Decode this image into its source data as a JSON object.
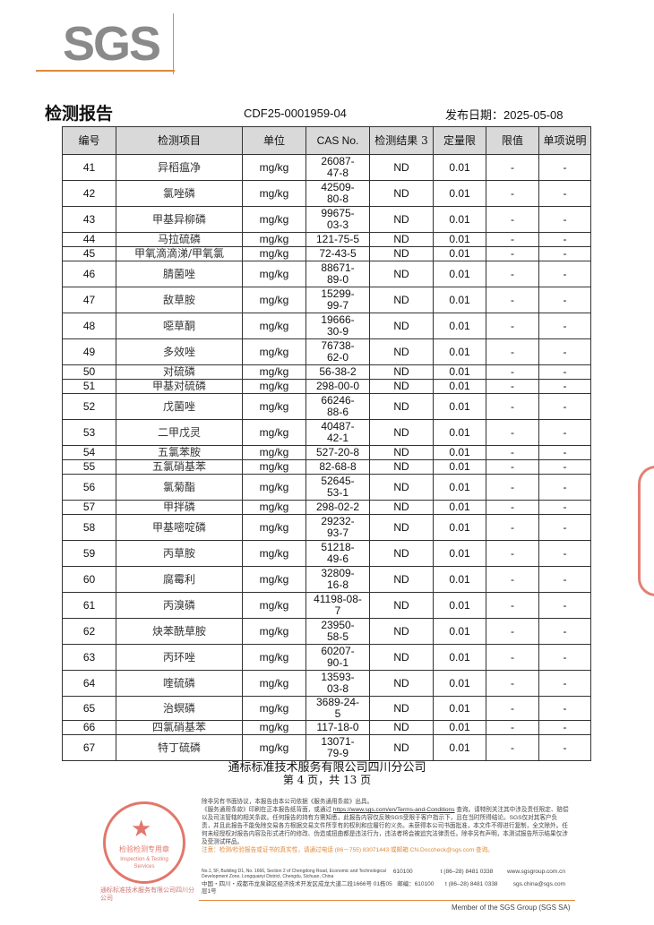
{
  "header": {
    "logo": "SGS",
    "title": "检测报告",
    "report_no": "CDF25-0001959-04",
    "date_label": "发布日期：",
    "date": "2025-05-08"
  },
  "table": {
    "columns": [
      "编号",
      "检测项目",
      "单位",
      "CAS No.",
      "检测结果 3",
      "定量限",
      "限值",
      "单项说明"
    ],
    "rows": [
      [
        "41",
        "异稻瘟净",
        "mg/kg",
        "26087-47-8",
        "ND",
        "0.01",
        "-",
        "-"
      ],
      [
        "42",
        "氯唑磷",
        "mg/kg",
        "42509-80-8",
        "ND",
        "0.01",
        "-",
        "-"
      ],
      [
        "43",
        "甲基异柳磷",
        "mg/kg",
        "99675-03-3",
        "ND",
        "0.01",
        "-",
        "-"
      ],
      [
        "44",
        "马拉硫磷",
        "mg/kg",
        "121-75-5",
        "ND",
        "0.01",
        "-",
        "-"
      ],
      [
        "45",
        "甲氧滴滴涕/甲氧氯",
        "mg/kg",
        "72-43-5",
        "ND",
        "0.01",
        "-",
        "-"
      ],
      [
        "46",
        "腈菌唑",
        "mg/kg",
        "88671-89-0",
        "ND",
        "0.01",
        "-",
        "-"
      ],
      [
        "47",
        "敌草胺",
        "mg/kg",
        "15299-99-7",
        "ND",
        "0.01",
        "-",
        "-"
      ],
      [
        "48",
        "噁草酮",
        "mg/kg",
        "19666-30-9",
        "ND",
        "0.01",
        "-",
        "-"
      ],
      [
        "49",
        "多效唑",
        "mg/kg",
        "76738-62-0",
        "ND",
        "0.01",
        "-",
        "-"
      ],
      [
        "50",
        "对硫磷",
        "mg/kg",
        "56-38-2",
        "ND",
        "0.01",
        "-",
        "-"
      ],
      [
        "51",
        "甲基对硫磷",
        "mg/kg",
        "298-00-0",
        "ND",
        "0.01",
        "-",
        "-"
      ],
      [
        "52",
        "戊菌唑",
        "mg/kg",
        "66246-88-6",
        "ND",
        "0.01",
        "-",
        "-"
      ],
      [
        "53",
        "二甲戊灵",
        "mg/kg",
        "40487-42-1",
        "ND",
        "0.01",
        "-",
        "-"
      ],
      [
        "54",
        "五氯苯胺",
        "mg/kg",
        "527-20-8",
        "ND",
        "0.01",
        "-",
        "-"
      ],
      [
        "55",
        "五氯硝基苯",
        "mg/kg",
        "82-68-8",
        "ND",
        "0.01",
        "-",
        "-"
      ],
      [
        "56",
        "氯菊酯",
        "mg/kg",
        "52645-53-1",
        "ND",
        "0.01",
        "-",
        "-"
      ],
      [
        "57",
        "甲拌磷",
        "mg/kg",
        "298-02-2",
        "ND",
        "0.01",
        "-",
        "-"
      ],
      [
        "58",
        "甲基嘧啶磷",
        "mg/kg",
        "29232-93-7",
        "ND",
        "0.01",
        "-",
        "-"
      ],
      [
        "59",
        "丙草胺",
        "mg/kg",
        "51218-49-6",
        "ND",
        "0.01",
        "-",
        "-"
      ],
      [
        "60",
        "腐霉利",
        "mg/kg",
        "32809-16-8",
        "ND",
        "0.01",
        "-",
        "-"
      ],
      [
        "61",
        "丙溴磷",
        "mg/kg",
        "41198-08-7",
        "ND",
        "0.01",
        "-",
        "-"
      ],
      [
        "62",
        "炔苯酰草胺",
        "mg/kg",
        "23950-58-5",
        "ND",
        "0.01",
        "-",
        "-"
      ],
      [
        "63",
        "丙环唑",
        "mg/kg",
        "60207-90-1",
        "ND",
        "0.01",
        "-",
        "-"
      ],
      [
        "64",
        "喹硫磷",
        "mg/kg",
        "13593-03-8",
        "ND",
        "0.01",
        "-",
        "-"
      ],
      [
        "65",
        "治螟磷",
        "mg/kg",
        "3689-24-5",
        "ND",
        "0.01",
        "-",
        "-"
      ],
      [
        "66",
        "四氯硝基苯",
        "mg/kg",
        "117-18-0",
        "ND",
        "0.01",
        "-",
        "-"
      ],
      [
        "67",
        "特丁硫磷",
        "mg/kg",
        "13071-79-9",
        "ND",
        "0.01",
        "-",
        "-"
      ]
    ]
  },
  "footer": {
    "company": "通标标准技术服务有限公司四川分公司",
    "page": "第 4 页，共 13 页",
    "stamp_text": "检验检测专用章",
    "stamp_sub": "Inspection & Testing Services",
    "stamp_caption": "通标标准技术服务有限公司四川分公司",
    "disclaimer1": "除非另有书面协议，本报告由本公司依据《服务通用条款》出具。",
    "disclaimer2": "《服务通用条款》印刷在正本报告纸背面，或通过 ",
    "terms_link": "https://www.sgs.com/en/Terms-and-Conditions",
    "disclaimer3": " 查询。请特别关注其中涉及责任限定、赔偿以及司法管辖的相关条款。任何报告的持有方需知悉，此报告内容仅反映SGS受限于客户指示下，且在当时所得结论。SGS仅对其客户负责，并且此报告不能免除交易各方根据交易文件所享有的权利和应履行的义务。未获得本公司书面批准，本文件不得进行复制，全文除外。任何未经授权对报告内容及形式进行的修改、伪造或扭曲都是违法行为，违法者将会被追究法律责任。除非另有声明，本测试报告所示结果仅涉及受测试样品。",
    "warning": "注意：检测/检验报告或证书的真实性，请通过电话 (86－755) 83071443 或邮箱 CN.Doccheck@sgs.com 查询。",
    "addr_en": "No.1, 5F, Building D1, No. 1666, Section 2 of Chengdong Road, Economic and Technological Development Zone, Longquanyi District, Chengdu, Sichuan, China",
    "postcode_en": "610100",
    "tel1": "t (86–28) 8481 0338",
    "web": "www.sgsgroup.com.cn",
    "addr_cn": "中国・四川・成都市龙泉驿区经济技术开发区成龙大道二段1666号 01栋05层1号",
    "postcode_cn": "邮编：610100",
    "tel2": "t (86–28) 8481 0338",
    "email": "sgs.china@sgs.com",
    "member": "Member of the SGS Group (SGS SA)"
  }
}
